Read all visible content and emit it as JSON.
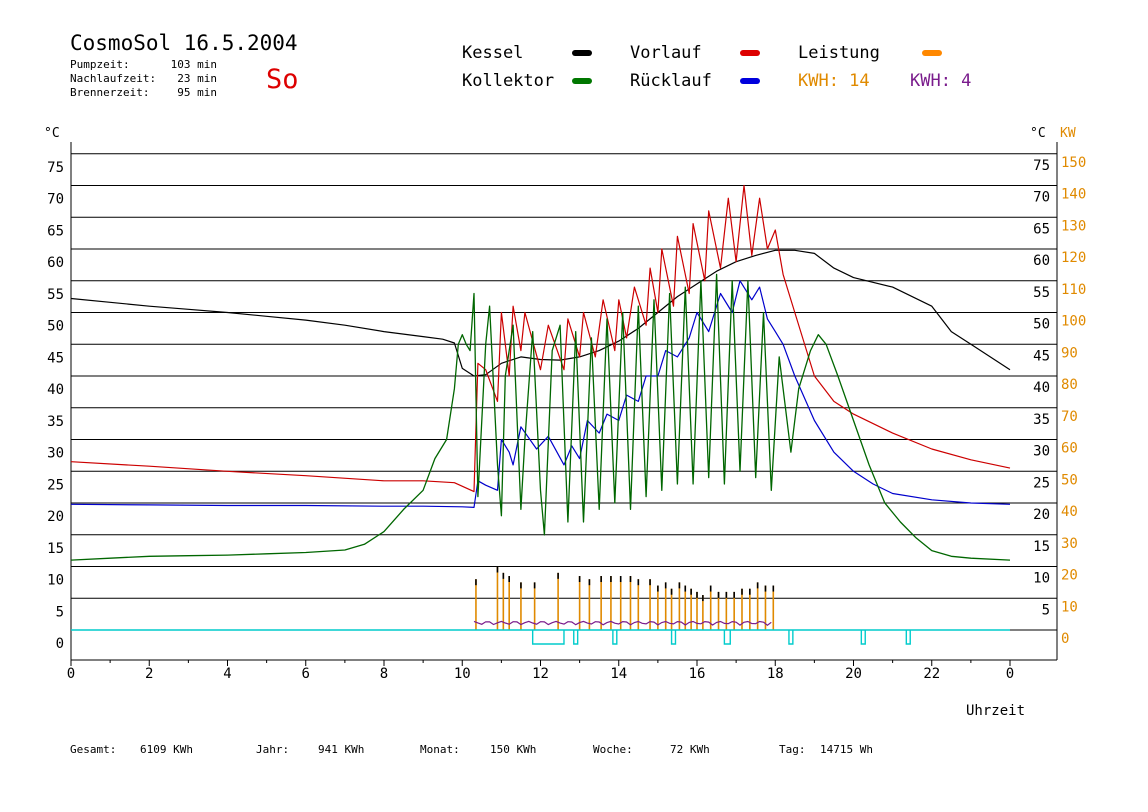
{
  "header": {
    "title": "CosmoSol 16.5.2004",
    "day": "So",
    "stats": [
      {
        "label": "Pumpzeit:",
        "value": "103 min"
      },
      {
        "label": "Nachlaufzeit:",
        "value": "23 min"
      },
      {
        "label": "Brennerzeit:",
        "value": "95 min"
      }
    ]
  },
  "legend": {
    "items": [
      {
        "name": "Kessel",
        "color": "#000000"
      },
      {
        "name": "Vorlauf",
        "color": "#dd0000"
      },
      {
        "name": "Leistung",
        "color": "#ff8800"
      },
      {
        "name": "Kollektor",
        "color": "#007700"
      },
      {
        "name": "Rücklauf",
        "color": "#0000dd"
      }
    ],
    "kwh": [
      {
        "label": "KWH: 14",
        "color": "#e08a00"
      },
      {
        "label": "KWH: 4",
        "color": "#7a1c8c"
      }
    ]
  },
  "footer": [
    {
      "label": "Gesamt:",
      "value": "6109 KWh"
    },
    {
      "label": "Jahr:",
      "value": "941 KWh"
    },
    {
      "label": "Monat:",
      "value": "150 KWh"
    },
    {
      "label": "Woche:",
      "value": "72 KWh"
    },
    {
      "label": "Tag:",
      "value": "14715 Wh"
    }
  ],
  "chart_data": {
    "type": "line",
    "xlabel": "Uhrzeit",
    "ylabel_left": "°C",
    "ylabel_right_1": "°C",
    "ylabel_right_2": "KW",
    "x_range": [
      0,
      24
    ],
    "x_ticks": [
      "0",
      "2",
      "4",
      "6",
      "8",
      "10",
      "12",
      "14",
      "16",
      "18",
      "20",
      "22",
      "0"
    ],
    "y_left_ticks": [
      "0",
      "5",
      "10",
      "15",
      "20",
      "25",
      "30",
      "35",
      "40",
      "45",
      "50",
      "55",
      "60",
      "65",
      "70",
      "75"
    ],
    "y_right_temp_ticks": [
      "5",
      "10",
      "15",
      "20",
      "25",
      "30",
      "35",
      "40",
      "45",
      "50",
      "55",
      "60",
      "65",
      "70",
      "75"
    ],
    "y_right_kw_ticks": [
      "0",
      "10",
      "20",
      "30",
      "40",
      "50",
      "60",
      "70",
      "80",
      "90",
      "100",
      "110",
      "120",
      "130",
      "140",
      "150"
    ],
    "ylim": [
      0,
      75
    ],
    "colors": {
      "kessel": "#000000",
      "vorlauf": "#cc0000",
      "ruecklauf": "#0000cc",
      "kollektor": "#006600",
      "leistung": "#e08a00",
      "leistung2": "#7a1c8c",
      "pumpe": "#00cccc",
      "grid": "#000000",
      "right_kw_axis": "#e08a00"
    },
    "series": [
      {
        "name": "Kessel",
        "key": "kessel",
        "points": [
          [
            0,
            52.2
          ],
          [
            1,
            51.6
          ],
          [
            2,
            51.0
          ],
          [
            3,
            50.5
          ],
          [
            4,
            50.0
          ],
          [
            5,
            49.4
          ],
          [
            6,
            48.8
          ],
          [
            7,
            48.0
          ],
          [
            8,
            47.0
          ],
          [
            9,
            46.2
          ],
          [
            9.5,
            45.8
          ],
          [
            9.8,
            45.2
          ],
          [
            10.0,
            41.2
          ],
          [
            10.3,
            40.0
          ],
          [
            10.6,
            40.2
          ],
          [
            11.0,
            42.0
          ],
          [
            11.5,
            43.0
          ],
          [
            12.0,
            42.6
          ],
          [
            12.5,
            42.5
          ],
          [
            13.0,
            43.0
          ],
          [
            13.5,
            44.0
          ],
          [
            14.0,
            45.5
          ],
          [
            14.5,
            47.5
          ],
          [
            15.0,
            50.0
          ],
          [
            15.5,
            52.5
          ],
          [
            16.0,
            54.5
          ],
          [
            16.5,
            56.5
          ],
          [
            17.0,
            58.0
          ],
          [
            17.5,
            59.0
          ],
          [
            18.0,
            59.8
          ],
          [
            18.5,
            59.8
          ],
          [
            19.0,
            59.3
          ],
          [
            19.5,
            57.0
          ],
          [
            20.0,
            55.5
          ],
          [
            21.0,
            54.0
          ],
          [
            22.0,
            51.0
          ],
          [
            22.5,
            47.0
          ],
          [
            23.0,
            45.0
          ],
          [
            24.0,
            41.0
          ]
        ]
      },
      {
        "name": "Vorlauf",
        "key": "vorlauf",
        "points": [
          [
            0,
            26.5
          ],
          [
            2,
            25.8
          ],
          [
            4,
            25.0
          ],
          [
            6,
            24.3
          ],
          [
            8,
            23.5
          ],
          [
            9,
            23.5
          ],
          [
            9.8,
            23.2
          ],
          [
            10.3,
            21.8
          ],
          [
            10.4,
            42.0
          ],
          [
            10.6,
            41.0
          ],
          [
            10.9,
            36.0
          ],
          [
            11.0,
            50.0
          ],
          [
            11.2,
            40.0
          ],
          [
            11.3,
            51.0
          ],
          [
            11.5,
            44.0
          ],
          [
            11.6,
            50.0
          ],
          [
            12.0,
            41.0
          ],
          [
            12.2,
            48.0
          ],
          [
            12.6,
            41.0
          ],
          [
            12.7,
            49.0
          ],
          [
            13.0,
            43.0
          ],
          [
            13.1,
            50.0
          ],
          [
            13.4,
            43.0
          ],
          [
            13.6,
            52.0
          ],
          [
            13.9,
            44.0
          ],
          [
            14.0,
            52.0
          ],
          [
            14.2,
            46.0
          ],
          [
            14.4,
            54.0
          ],
          [
            14.7,
            48.0
          ],
          [
            14.8,
            57.0
          ],
          [
            15.0,
            50.0
          ],
          [
            15.1,
            60.0
          ],
          [
            15.4,
            51.0
          ],
          [
            15.5,
            62.0
          ],
          [
            15.8,
            53.0
          ],
          [
            15.9,
            64.0
          ],
          [
            16.2,
            55.0
          ],
          [
            16.3,
            66.0
          ],
          [
            16.6,
            57.0
          ],
          [
            16.8,
            68.0
          ],
          [
            17.0,
            58.0
          ],
          [
            17.2,
            70.0
          ],
          [
            17.4,
            59.0
          ],
          [
            17.6,
            68.0
          ],
          [
            17.8,
            60.0
          ],
          [
            18.0,
            63.0
          ],
          [
            18.2,
            56.0
          ],
          [
            18.5,
            50.0
          ],
          [
            19.0,
            40.0
          ],
          [
            19.5,
            36.0
          ],
          [
            20.0,
            34.0
          ],
          [
            21.0,
            31.0
          ],
          [
            22.0,
            28.5
          ],
          [
            23.0,
            26.8
          ],
          [
            24.0,
            25.5
          ]
        ]
      },
      {
        "name": "Rücklauf",
        "key": "ruecklauf",
        "points": [
          [
            0,
            19.8
          ],
          [
            2,
            19.7
          ],
          [
            4,
            19.6
          ],
          [
            6,
            19.6
          ],
          [
            8,
            19.5
          ],
          [
            9,
            19.5
          ],
          [
            10,
            19.4
          ],
          [
            10.3,
            19.3
          ],
          [
            10.4,
            23.5
          ],
          [
            10.6,
            22.8
          ],
          [
            10.9,
            22.0
          ],
          [
            11.0,
            30.0
          ],
          [
            11.2,
            28.0
          ],
          [
            11.3,
            26.0
          ],
          [
            11.5,
            32.0
          ],
          [
            11.9,
            28.5
          ],
          [
            12.2,
            30.5
          ],
          [
            12.6,
            26.0
          ],
          [
            12.8,
            29.0
          ],
          [
            13.0,
            27.0
          ],
          [
            13.2,
            33.0
          ],
          [
            13.5,
            31.0
          ],
          [
            13.7,
            34.0
          ],
          [
            14.0,
            33.0
          ],
          [
            14.2,
            37.0
          ],
          [
            14.5,
            36.0
          ],
          [
            14.7,
            40.0
          ],
          [
            15.0,
            40.0
          ],
          [
            15.2,
            44.0
          ],
          [
            15.5,
            43.0
          ],
          [
            15.8,
            46.0
          ],
          [
            16.0,
            50.0
          ],
          [
            16.3,
            47.0
          ],
          [
            16.6,
            53.0
          ],
          [
            16.9,
            50.0
          ],
          [
            17.1,
            55.0
          ],
          [
            17.4,
            52.0
          ],
          [
            17.6,
            54.0
          ],
          [
            17.8,
            49.0
          ],
          [
            18.0,
            47.0
          ],
          [
            18.2,
            45.0
          ],
          [
            18.5,
            40.0
          ],
          [
            19.0,
            33.0
          ],
          [
            19.5,
            28.0
          ],
          [
            20.0,
            25.0
          ],
          [
            20.5,
            23.0
          ],
          [
            21.0,
            21.5
          ],
          [
            22.0,
            20.5
          ],
          [
            23.0,
            20.0
          ],
          [
            24.0,
            19.8
          ]
        ]
      },
      {
        "name": "Kollektor",
        "key": "kollektor",
        "points": [
          [
            0,
            11.0
          ],
          [
            1,
            11.3
          ],
          [
            2,
            11.6
          ],
          [
            3,
            11.7
          ],
          [
            4,
            11.8
          ],
          [
            5,
            12.0
          ],
          [
            6,
            12.2
          ],
          [
            7,
            12.6
          ],
          [
            7.5,
            13.5
          ],
          [
            8,
            15.5
          ],
          [
            8.5,
            19.0
          ],
          [
            9.0,
            22.0
          ],
          [
            9.3,
            27.0
          ],
          [
            9.6,
            30.0
          ],
          [
            9.8,
            38.0
          ],
          [
            9.9,
            45.0
          ],
          [
            10.0,
            46.5
          ],
          [
            10.1,
            45.0
          ],
          [
            10.2,
            44.0
          ],
          [
            10.3,
            53.0
          ],
          [
            10.4,
            21.0
          ],
          [
            10.6,
            45.0
          ],
          [
            10.7,
            51.0
          ],
          [
            10.9,
            26.0
          ],
          [
            11.0,
            18.0
          ],
          [
            11.1,
            40.0
          ],
          [
            11.3,
            48.0
          ],
          [
            11.5,
            19.0
          ],
          [
            11.6,
            30.0
          ],
          [
            11.8,
            47.0
          ],
          [
            12.0,
            22.0
          ],
          [
            12.1,
            15.0
          ],
          [
            12.3,
            44.0
          ],
          [
            12.5,
            48.0
          ],
          [
            12.7,
            17.0
          ],
          [
            12.9,
            47.0
          ],
          [
            13.1,
            17.0
          ],
          [
            13.3,
            46.0
          ],
          [
            13.5,
            19.0
          ],
          [
            13.7,
            49.0
          ],
          [
            13.9,
            20.0
          ],
          [
            14.1,
            50.0
          ],
          [
            14.3,
            19.0
          ],
          [
            14.5,
            51.0
          ],
          [
            14.7,
            21.0
          ],
          [
            14.9,
            52.0
          ],
          [
            15.1,
            22.0
          ],
          [
            15.3,
            53.0
          ],
          [
            15.5,
            23.0
          ],
          [
            15.7,
            54.0
          ],
          [
            15.9,
            23.0
          ],
          [
            16.1,
            55.0
          ],
          [
            16.3,
            24.0
          ],
          [
            16.5,
            56.0
          ],
          [
            16.7,
            23.0
          ],
          [
            16.9,
            55.0
          ],
          [
            17.1,
            25.0
          ],
          [
            17.3,
            55.0
          ],
          [
            17.5,
            24.0
          ],
          [
            17.7,
            50.0
          ],
          [
            17.9,
            22.0
          ],
          [
            18.1,
            43.0
          ],
          [
            18.4,
            28.0
          ],
          [
            18.6,
            38.0
          ],
          [
            18.9,
            44.0
          ],
          [
            19.1,
            46.5
          ],
          [
            19.3,
            45.0
          ],
          [
            19.6,
            40.0
          ],
          [
            20.0,
            33.0
          ],
          [
            20.4,
            26.0
          ],
          [
            20.8,
            20.0
          ],
          [
            21.2,
            17.0
          ],
          [
            21.6,
            14.5
          ],
          [
            22.0,
            12.5
          ],
          [
            22.5,
            11.6
          ],
          [
            23.0,
            11.3
          ],
          [
            24.0,
            11.0
          ]
        ]
      }
    ],
    "leistung_bars_kw": {
      "x": [
        10.35,
        10.9,
        11.05,
        11.2,
        11.5,
        11.85,
        12.45,
        13.0,
        13.25,
        13.55,
        13.8,
        14.05,
        14.3,
        14.5,
        14.8,
        15.0,
        15.2,
        15.35,
        15.55,
        15.7,
        15.85,
        16.0,
        16.15,
        16.35,
        16.55,
        16.75,
        16.95,
        17.15,
        17.35,
        17.55,
        17.75,
        17.95
      ],
      "values": [
        16.0,
        20.0,
        18.0,
        17.0,
        15.0,
        15.0,
        18.0,
        17.0,
        16.0,
        17.0,
        17.0,
        17.0,
        17.0,
        16.0,
        16.0,
        14.0,
        15.0,
        13.0,
        15.0,
        14.0,
        13.0,
        12.0,
        11.0,
        14.0,
        12.0,
        12.0,
        12.0,
        13.0,
        13.0,
        15.0,
        14.0,
        14.0
      ]
    },
    "pumpe_pulses": [
      [
        11.8,
        12.6
      ],
      [
        12.85,
        12.95
      ],
      [
        13.85,
        13.95
      ],
      [
        15.35,
        15.45
      ],
      [
        16.7,
        16.85
      ],
      [
        18.35,
        18.45
      ],
      [
        20.2,
        20.3
      ],
      [
        21.35,
        21.45
      ]
    ]
  }
}
